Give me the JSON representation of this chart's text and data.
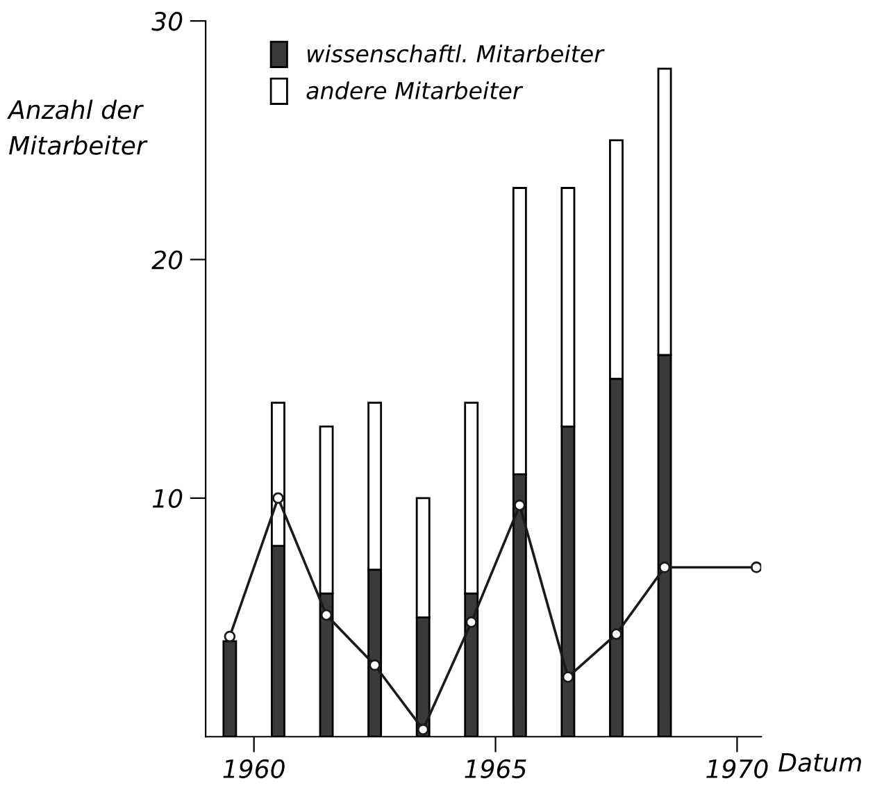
{
  "chart_data": {
    "type": "bar",
    "stacked": true,
    "ylabel": "Anzahl der Mitarbeiter",
    "xlabel": "Datum",
    "x": [
      1959.5,
      1960.5,
      1961.5,
      1962.5,
      1963.5,
      1964.5,
      1965.5,
      1966.5,
      1967.5,
      1968.5
    ],
    "series": [
      {
        "name": "wissenschaftl. Mitarbeiter",
        "color": "#3a3a3a",
        "values": [
          4,
          8,
          6,
          7,
          5,
          6,
          11,
          13,
          15,
          16
        ]
      },
      {
        "name": "andere Mitarbeiter",
        "color": "#ffffff",
        "values": [
          0,
          6,
          7,
          7,
          5,
          8,
          12,
          10,
          10,
          12
        ]
      },
      {
        "type": "line",
        "color": "#1a1a1a",
        "x": [
          1959.5,
          1960.5,
          1961.5,
          1962.5,
          1963.5,
          1964.5,
          1965.5,
          1966.5,
          1967.5,
          1968.5,
          1970.4
        ],
        "values": [
          4.2,
          10,
          5.1,
          3,
          0.3,
          4.8,
          9.7,
          2.5,
          4.3,
          7.1,
          7.1
        ]
      }
    ],
    "xlim": [
      1959,
      1970.5
    ],
    "xticks": [
      1960,
      1965,
      1970
    ],
    "ylim": [
      0,
      30
    ],
    "yticks": [
      10,
      20,
      30
    ],
    "legend": "top left",
    "grid": false,
    "marker": "circle"
  }
}
